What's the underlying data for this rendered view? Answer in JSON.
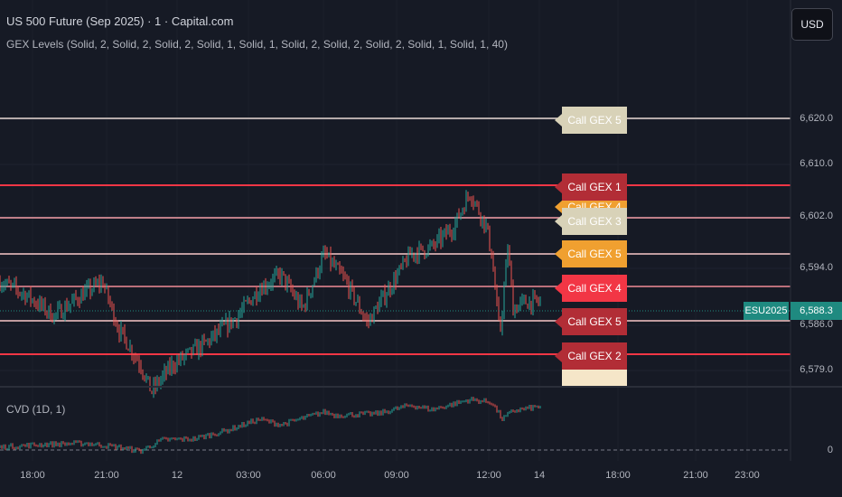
{
  "header": {
    "title": "US 500 Future (Sep 2025) · 1 · Capital.com",
    "indicator": "GEX Levels (Solid, 2, Solid, 2, Solid, 2, Solid, 1, Solid, 1, Solid, 2, Solid, 2, Solid, 2, Solid, 1, Solid, 1, 40)"
  },
  "currency_button": "USD",
  "cvd_label": "CVD (1D, 1)",
  "price_badge": {
    "ticker": "ESU2025",
    "price": "6,588.3"
  },
  "colors": {
    "background": "#161a25",
    "candle_up": "#26a69a",
    "candle_down": "#ef5350",
    "cream": "#d8d2b8",
    "red_line": "#f23645",
    "orange": "#f0a030",
    "teal_badge": "#1f8a80"
  },
  "chart_data": {
    "type": "candlestick",
    "y_axis": {
      "ticks": [
        "6,620.0",
        "6,610.0",
        "6,602.0",
        "6,594.0",
        "6,586.0",
        "6,579.0"
      ],
      "range": [
        6577,
        6625
      ]
    },
    "x_axis": {
      "ticks": [
        "18:00",
        "21:00",
        "12",
        "03:00",
        "06:00",
        "09:00",
        "12:00",
        "14",
        "18:00",
        "21:00",
        "23:00"
      ]
    },
    "price_path": [
      [
        0,
        6592
      ],
      [
        0.05,
        6590
      ],
      [
        0.1,
        6587
      ],
      [
        0.15,
        6590
      ],
      [
        0.19,
        6592
      ],
      [
        0.22,
        6585
      ],
      [
        0.26,
        6580
      ],
      [
        0.28,
        6576
      ],
      [
        0.32,
        6580
      ],
      [
        0.38,
        6583
      ],
      [
        0.44,
        6587
      ],
      [
        0.48,
        6591
      ],
      [
        0.52,
        6593
      ],
      [
        0.56,
        6588
      ],
      [
        0.6,
        6596
      ],
      [
        0.64,
        6592
      ],
      [
        0.68,
        6586
      ],
      [
        0.72,
        6591
      ],
      [
        0.76,
        6596
      ],
      [
        0.8,
        6597
      ],
      [
        0.84,
        6600
      ],
      [
        0.87,
        6605
      ],
      [
        0.9,
        6600
      ],
      [
        0.91,
        6596
      ],
      [
        0.925,
        6584
      ],
      [
        0.94,
        6597
      ],
      [
        0.95,
        6588
      ],
      [
        0.97,
        6589
      ],
      [
        1.0,
        6589
      ]
    ],
    "gex_levels": [
      {
        "label": "Call GEX 5",
        "price": 6616,
        "line_color": "#e8d9d4",
        "label_bg": "#d8d2b8",
        "label_fg": "#ffffff"
      },
      {
        "label": "Call GEX 1",
        "price": 6606,
        "line_color": "#f23645",
        "label_bg": "#b22d36",
        "label_fg": "#ffffff"
      },
      {
        "label": "Call GEX 4",
        "price": 6603,
        "line_color": "#f07080",
        "label_bg": "#f0a030",
        "label_fg": "#ffffff"
      },
      {
        "label": "Call GEX 3",
        "price": 6601,
        "line_color": "#f5a0a8",
        "label_bg": "#d8d2b8",
        "label_fg": "#ffffff"
      },
      {
        "label": "Call GEX 5",
        "price": 6596,
        "line_color": "#f8c8c8",
        "label_bg": "#f0a030",
        "label_fg": "#ffffff"
      },
      {
        "label": "Call GEX 4",
        "price": 6591,
        "line_color": "#f08b96",
        "label_bg": "#f23645",
        "label_fg": "#ffffff"
      },
      {
        "label": "Call GEX 5",
        "price": 6587,
        "line_color": "#f8c8c8",
        "label_bg": "#b22d36",
        "label_fg": "#ffffff"
      },
      {
        "label": "Call GEX 2",
        "price": 6582,
        "line_color": "#f23645",
        "label_bg": "#b22d36",
        "label_fg": "#ffffff"
      }
    ],
    "cvd": {
      "zero_label": "0",
      "path": [
        [
          0,
          0.05
        ],
        [
          0.08,
          0.1
        ],
        [
          0.16,
          0.12
        ],
        [
          0.22,
          0.05
        ],
        [
          0.26,
          -0.02
        ],
        [
          0.3,
          0.18
        ],
        [
          0.36,
          0.2
        ],
        [
          0.42,
          0.35
        ],
        [
          0.48,
          0.55
        ],
        [
          0.52,
          0.45
        ],
        [
          0.6,
          0.68
        ],
        [
          0.62,
          0.62
        ],
        [
          0.7,
          0.65
        ],
        [
          0.76,
          0.8
        ],
        [
          0.8,
          0.72
        ],
        [
          0.87,
          0.9
        ],
        [
          0.91,
          0.85
        ],
        [
          0.93,
          0.55
        ],
        [
          0.95,
          0.7
        ],
        [
          1.0,
          0.78
        ]
      ]
    }
  }
}
